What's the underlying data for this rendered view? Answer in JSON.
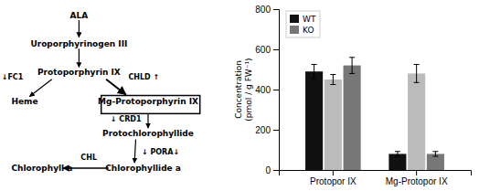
{
  "chart_data": {
    "type": "bar",
    "categories": [
      "Protopor IX",
      "Mg-Protopor IX"
    ],
    "series": [
      {
        "name": "WT",
        "color": "#111111",
        "values": [
          490,
          80
        ],
        "errors": [
          35,
          12
        ]
      },
      {
        "color": "#bbbbbb",
        "values": [
          450,
          480
        ],
        "errors": [
          25,
          45
        ]
      },
      {
        "name": "KO",
        "color": "#777777",
        "values": [
          520,
          80
        ],
        "errors": [
          40,
          12
        ]
      }
    ],
    "y_label": [
      "Concentration",
      "(pmol / g FW⁻¹)"
    ],
    "ylim": [
      0,
      800
    ],
    "yticks": [
      0,
      200,
      400,
      600,
      800
    ],
    "legend": "upper left",
    "annotations": [
      "ALA",
      "Uroporphyrinogen III",
      "Protoporphyrin IX",
      "Mg-Protoporphyrin IX",
      "Protochlorophyllide",
      "Chlorophyllide a",
      "Chlorophyll a",
      "Heme",
      "↓FC1",
      "CHLD ↑",
      "↓ CRD1",
      "↓ PORA↓",
      "CHL"
    ]
  }
}
